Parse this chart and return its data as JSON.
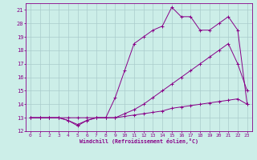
{
  "xlabel": "Windchill (Refroidissement éolien,°C)",
  "background_color": "#cceee8",
  "line_color": "#880088",
  "grid_color": "#aacccc",
  "xlim": [
    -0.5,
    23.5
  ],
  "ylim": [
    12,
    21.5
  ],
  "yticks": [
    12,
    13,
    14,
    15,
    16,
    17,
    18,
    19,
    20,
    21
  ],
  "xticks": [
    0,
    1,
    2,
    3,
    4,
    5,
    6,
    7,
    8,
    9,
    10,
    11,
    12,
    13,
    14,
    15,
    16,
    17,
    18,
    19,
    20,
    21,
    22,
    23
  ],
  "line1_x": [
    0,
    1,
    2,
    3,
    4,
    5,
    6,
    7,
    8,
    9,
    10,
    11,
    12,
    13,
    14,
    15,
    16,
    17,
    18,
    19,
    20,
    21,
    22,
    23
  ],
  "line1_y": [
    13,
    13,
    13,
    13,
    12.8,
    12.5,
    12.8,
    13,
    13,
    13,
    13.3,
    13.6,
    14.0,
    14.5,
    15.0,
    15.5,
    16.0,
    16.5,
    17.0,
    17.5,
    18.0,
    18.5,
    17.0,
    15.0
  ],
  "line2_x": [
    0,
    1,
    2,
    3,
    4,
    5,
    6,
    7,
    8,
    9,
    10,
    11,
    12,
    13,
    14,
    15,
    16,
    17,
    18,
    19,
    20,
    21,
    22,
    23
  ],
  "line2_y": [
    13,
    13,
    13,
    13,
    13,
    13,
    13,
    13,
    13,
    13,
    13.1,
    13.2,
    13.3,
    13.4,
    13.5,
    13.7,
    13.8,
    13.9,
    14.0,
    14.1,
    14.2,
    14.3,
    14.4,
    14.0
  ],
  "line3_x": [
    0,
    1,
    2,
    3,
    4,
    5,
    6,
    7,
    8,
    9,
    10,
    11,
    12,
    13,
    14,
    15,
    16,
    17,
    18,
    19,
    20,
    21,
    22,
    23
  ],
  "line3_y": [
    13,
    13,
    13,
    13,
    12.8,
    12.4,
    12.8,
    13,
    13,
    14.5,
    16.5,
    18.5,
    19.0,
    19.5,
    19.8,
    21.2,
    20.5,
    20.5,
    19.5,
    19.5,
    20.0,
    20.5,
    19.5,
    14.0
  ]
}
